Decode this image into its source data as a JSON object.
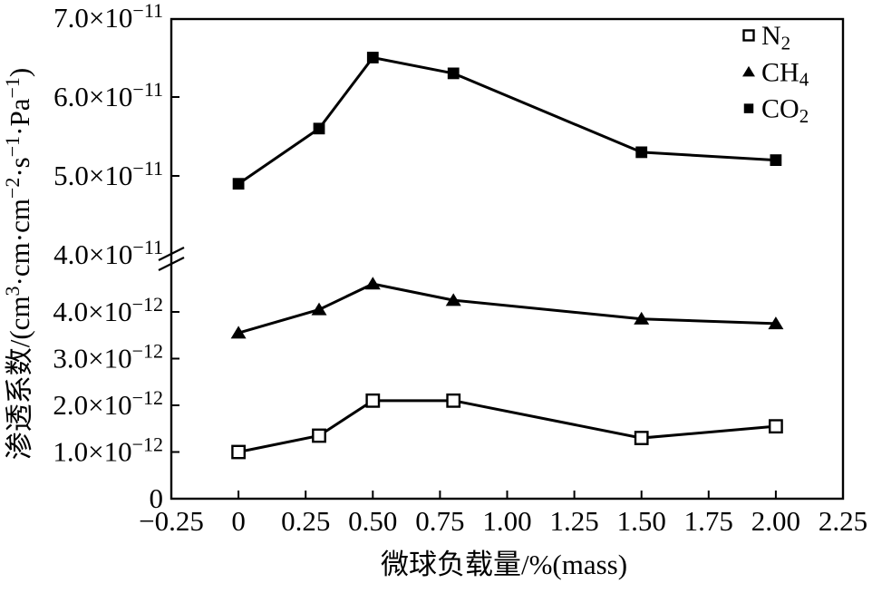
{
  "figure": {
    "background_color": "#ffffff",
    "ink_color": "#000000"
  },
  "chart_data": {
    "type": "line",
    "title": "",
    "xlabel": "微球负载量/%(mass)",
    "ylabel": "渗透系数/(cm³·cm·cm⁻²·s⁻¹·Pa⁻¹)",
    "grid": false,
    "x_axis": {
      "min": -0.25,
      "max": 2.25,
      "ticks": [
        -0.25,
        0,
        0.25,
        0.5,
        0.75,
        1.0,
        1.25,
        1.5,
        1.75,
        2.0,
        2.25
      ],
      "tick_labels": [
        "−0.25",
        "0",
        "0.25",
        "0.50",
        "0.75",
        "1.00",
        "1.25",
        "1.50",
        "1.75",
        "2.00",
        "2.25"
      ]
    },
    "y_axis": {
      "broken": true,
      "upper_section": {
        "range": [
          4e-11,
          7e-11
        ],
        "ticks": [
          7e-11,
          6e-11,
          5e-11,
          4e-11
        ],
        "tick_labels": [
          "7.0×10⁻¹¹",
          "6.0×10⁻¹¹",
          "5.0×10⁻¹¹",
          "4.0×10⁻¹¹"
        ]
      },
      "lower_section": {
        "range": [
          0,
          5.2e-12
        ],
        "ticks": [
          4e-12,
          3e-12,
          2e-12,
          1e-12,
          0
        ],
        "tick_labels": [
          "4.0×10⁻¹²",
          "3.0×10⁻¹²",
          "2.0×10⁻¹²",
          "1.0×10⁻¹²",
          "0"
        ]
      }
    },
    "x": [
      0,
      0.3,
      0.5,
      0.8,
      1.5,
      2.0
    ],
    "series": [
      {
        "name": "N2",
        "label": "N₂",
        "marker": "open-square",
        "values": [
          1e-12,
          1.35e-12,
          2.1e-12,
          2.1e-12,
          1.3e-12,
          1.55e-12
        ]
      },
      {
        "name": "CH4",
        "label": "CH₄",
        "marker": "filled-triangle",
        "values": [
          3.55e-12,
          4.05e-12,
          4.6e-12,
          4.25e-12,
          3.85e-12,
          3.75e-12
        ]
      },
      {
        "name": "CO2",
        "label": "CO₂",
        "marker": "filled-square",
        "values": [
          4.9e-11,
          5.6e-11,
          6.5e-11,
          6.3e-11,
          5.3e-11,
          5.2e-11
        ]
      }
    ],
    "legend": {
      "position": "top-right",
      "entries": [
        "N₂",
        "CH₄",
        "CO₂"
      ]
    }
  }
}
